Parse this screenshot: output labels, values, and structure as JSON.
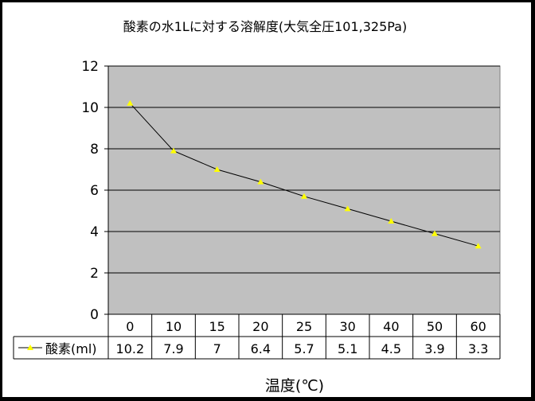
{
  "chart_data": {
    "type": "line",
    "title": "酸素の水1Lに対する溶解度(大気全圧101,325Pa)",
    "xlabel": "温度(℃)",
    "ylabel": "",
    "categories": [
      "0",
      "10",
      "15",
      "20",
      "25",
      "30",
      "40",
      "50",
      "60"
    ],
    "ylim": [
      0,
      12
    ],
    "yticks": [
      "0",
      "2",
      "4",
      "6",
      "8",
      "10",
      "12"
    ],
    "grid": true,
    "legend_position": "data-table",
    "series": [
      {
        "name": "酸素(ml)",
        "values": [
          10.2,
          7.9,
          7,
          6.4,
          5.7,
          5.1,
          4.5,
          3.9,
          3.3
        ],
        "labels": [
          "10.2",
          "7.9",
          "7",
          "6.4",
          "5.7",
          "5.1",
          "4.5",
          "3.9",
          "3.3"
        ],
        "color": "#000000",
        "marker_color": "#ffff00"
      }
    ],
    "plot_background": "#c0c0c0"
  }
}
